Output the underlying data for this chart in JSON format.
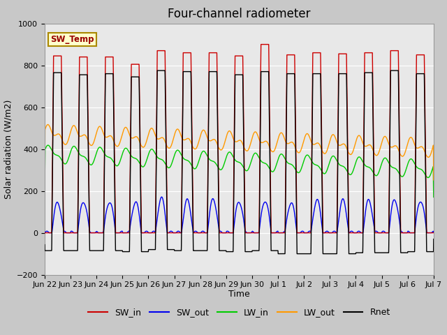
{
  "title": "Four-channel radiometer",
  "xlabel": "Time",
  "ylabel": "Solar radiation (W/m2)",
  "ylim": [
    -200,
    1000
  ],
  "fig_bg_color": "#c8c8c8",
  "plot_bg_color": "#e8e8e8",
  "sw_temp_label": "SW_Temp",
  "sw_temp_bg": "#ffffcc",
  "sw_temp_fg": "#990000",
  "sw_temp_border": "#aa8800",
  "tick_labels": [
    "Jun 22",
    "Jun 23",
    "Jun 24",
    "Jun 25",
    "Jun 26",
    "Jun 27",
    "Jun 28",
    "Jun 29",
    "Jun 30",
    "Jul 1",
    "Jul 2",
    "Jul 3",
    "Jul 4",
    "Jul 5",
    "Jul 6",
    "Jul 7"
  ],
  "n_days": 15,
  "title_fontsize": 12,
  "axis_fontsize": 9,
  "tick_fontsize": 8,
  "legend_fontsize": 9
}
